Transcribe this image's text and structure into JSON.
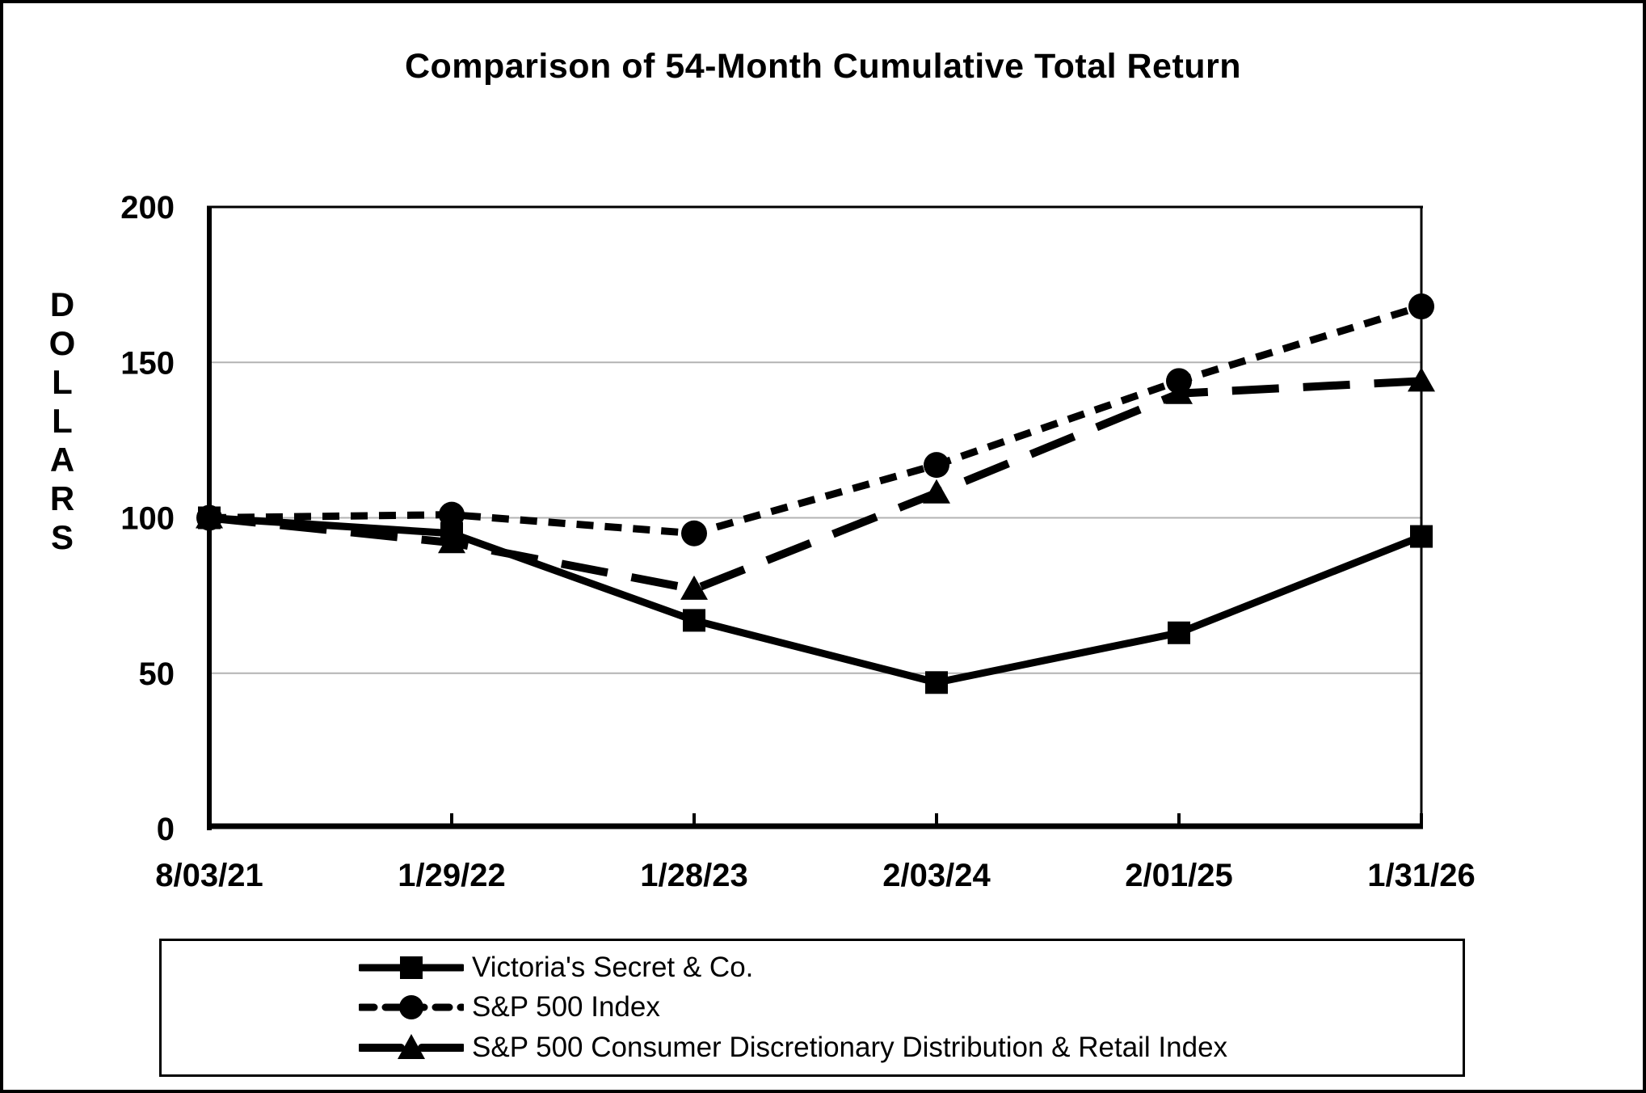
{
  "page": {
    "background_color": "#ffffff",
    "border_color": "#000000"
  },
  "chart_data": {
    "type": "line",
    "title": "Comparison of 54-Month Cumulative Total Return",
    "ylabel": "DOLLARS",
    "xlabel": "",
    "ylim": [
      0,
      200
    ],
    "yticks": [
      0,
      50,
      100,
      150,
      200
    ],
    "gridline_values": [
      50,
      100,
      150
    ],
    "grid": true,
    "legend_position": "bottom",
    "categories": [
      "8/03/21",
      "1/29/22",
      "1/28/23",
      "2/03/24",
      "2/01/25",
      "1/31/26"
    ],
    "series": [
      {
        "name": "Victoria's Secret & Co.",
        "marker": "square",
        "line_style": "solid",
        "values": [
          100,
          95,
          67,
          47,
          63,
          94
        ]
      },
      {
        "name": "S&P 500 Index",
        "marker": "circle",
        "line_style": "dashed",
        "values": [
          100,
          101,
          95,
          117,
          144,
          168
        ]
      },
      {
        "name": "S&P 500 Consumer Discretionary Distribution & Retail Index",
        "marker": "triangle",
        "line_style": "long-dash",
        "values": [
          100,
          92,
          77,
          108,
          140,
          144
        ]
      }
    ],
    "colors": {
      "series": "#000000",
      "gridline": "#b3b3b3",
      "axis": "#000000",
      "background": "#ffffff"
    }
  }
}
